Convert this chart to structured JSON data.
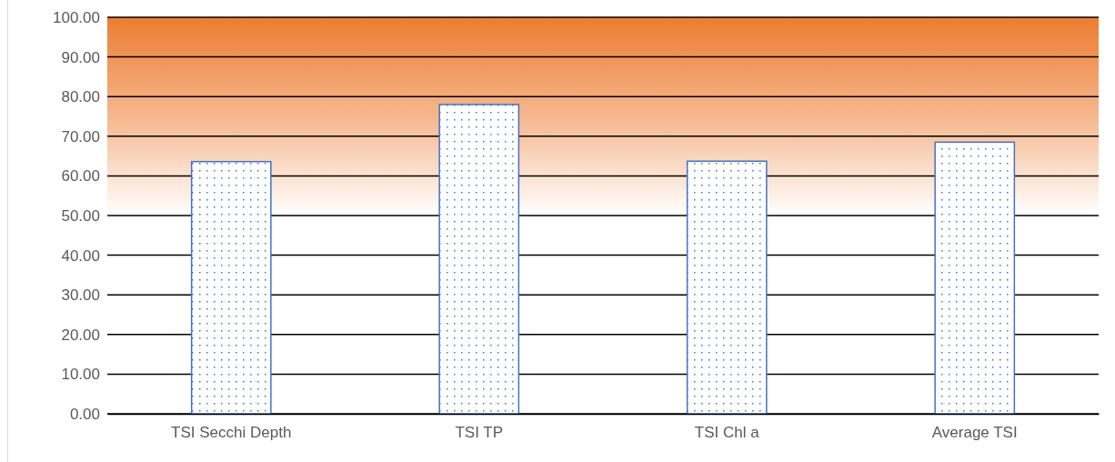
{
  "chart_data": {
    "type": "bar",
    "categories": [
      "TSI Secchi Depth",
      "TSI TP",
      "TSI Chl a",
      "Average TSI"
    ],
    "values": [
      63.6,
      78.0,
      63.7,
      68.5
    ],
    "colors": [
      "#4472c4",
      "#4472c4",
      "#4472c4",
      "#4472c4"
    ],
    "ylim": [
      0,
      100
    ],
    "yticks": [
      {
        "value": 0,
        "label": "0.00"
      },
      {
        "value": 10,
        "label": "10.00"
      },
      {
        "value": 20,
        "label": "20.00"
      },
      {
        "value": 30,
        "label": "30.00"
      },
      {
        "value": 40,
        "label": "40.00"
      },
      {
        "value": 50,
        "label": "50.00"
      },
      {
        "value": 60,
        "label": "60.00"
      },
      {
        "value": 70,
        "label": "70.00"
      },
      {
        "value": 80,
        "label": "80.00"
      },
      {
        "value": 90,
        "label": "90.00"
      },
      {
        "value": 100,
        "label": "100.00"
      }
    ],
    "grid": "y",
    "bands": [
      {
        "axis": "y",
        "from": 50,
        "to": 100,
        "color": "#ed7d31"
      }
    ]
  }
}
